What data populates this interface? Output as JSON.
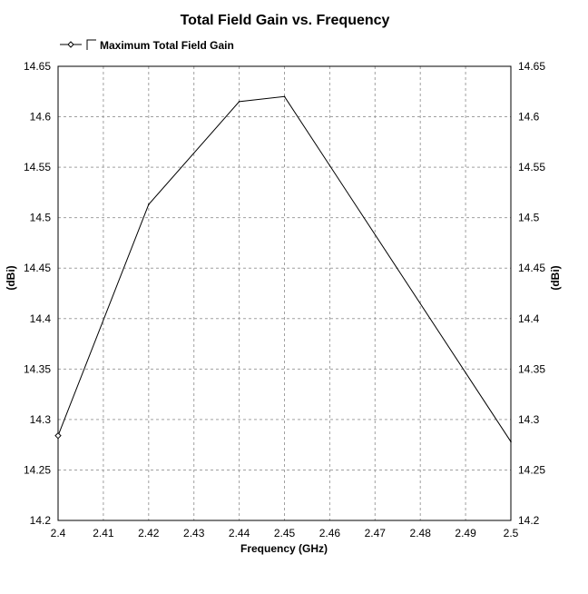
{
  "chart_data": {
    "type": "line",
    "title": "Total Field Gain vs. Frequency",
    "xlabel": "Frequency (GHz)",
    "ylabel": "(dBi)",
    "ylabel_right": "(dBi)",
    "xlim": [
      2.4,
      2.5
    ],
    "ylim": [
      14.2,
      14.65
    ],
    "x_ticks": [
      "2.4",
      "2.41",
      "2.42",
      "2.43",
      "2.44",
      "2.45",
      "2.46",
      "2.47",
      "2.48",
      "2.49",
      "2.5"
    ],
    "y_ticks": [
      "14.2",
      "14.25",
      "14.3",
      "14.35",
      "14.4",
      "14.45",
      "14.5",
      "14.55",
      "14.6",
      "14.65"
    ],
    "grid": true,
    "legend_position": "top-left",
    "series": [
      {
        "name": "Maximum Total Field Gain",
        "color": "#000000",
        "x": [
          2.4,
          2.42,
          2.44,
          2.45,
          2.5
        ],
        "y": [
          14.284,
          14.513,
          14.615,
          14.62,
          14.278
        ]
      }
    ]
  }
}
